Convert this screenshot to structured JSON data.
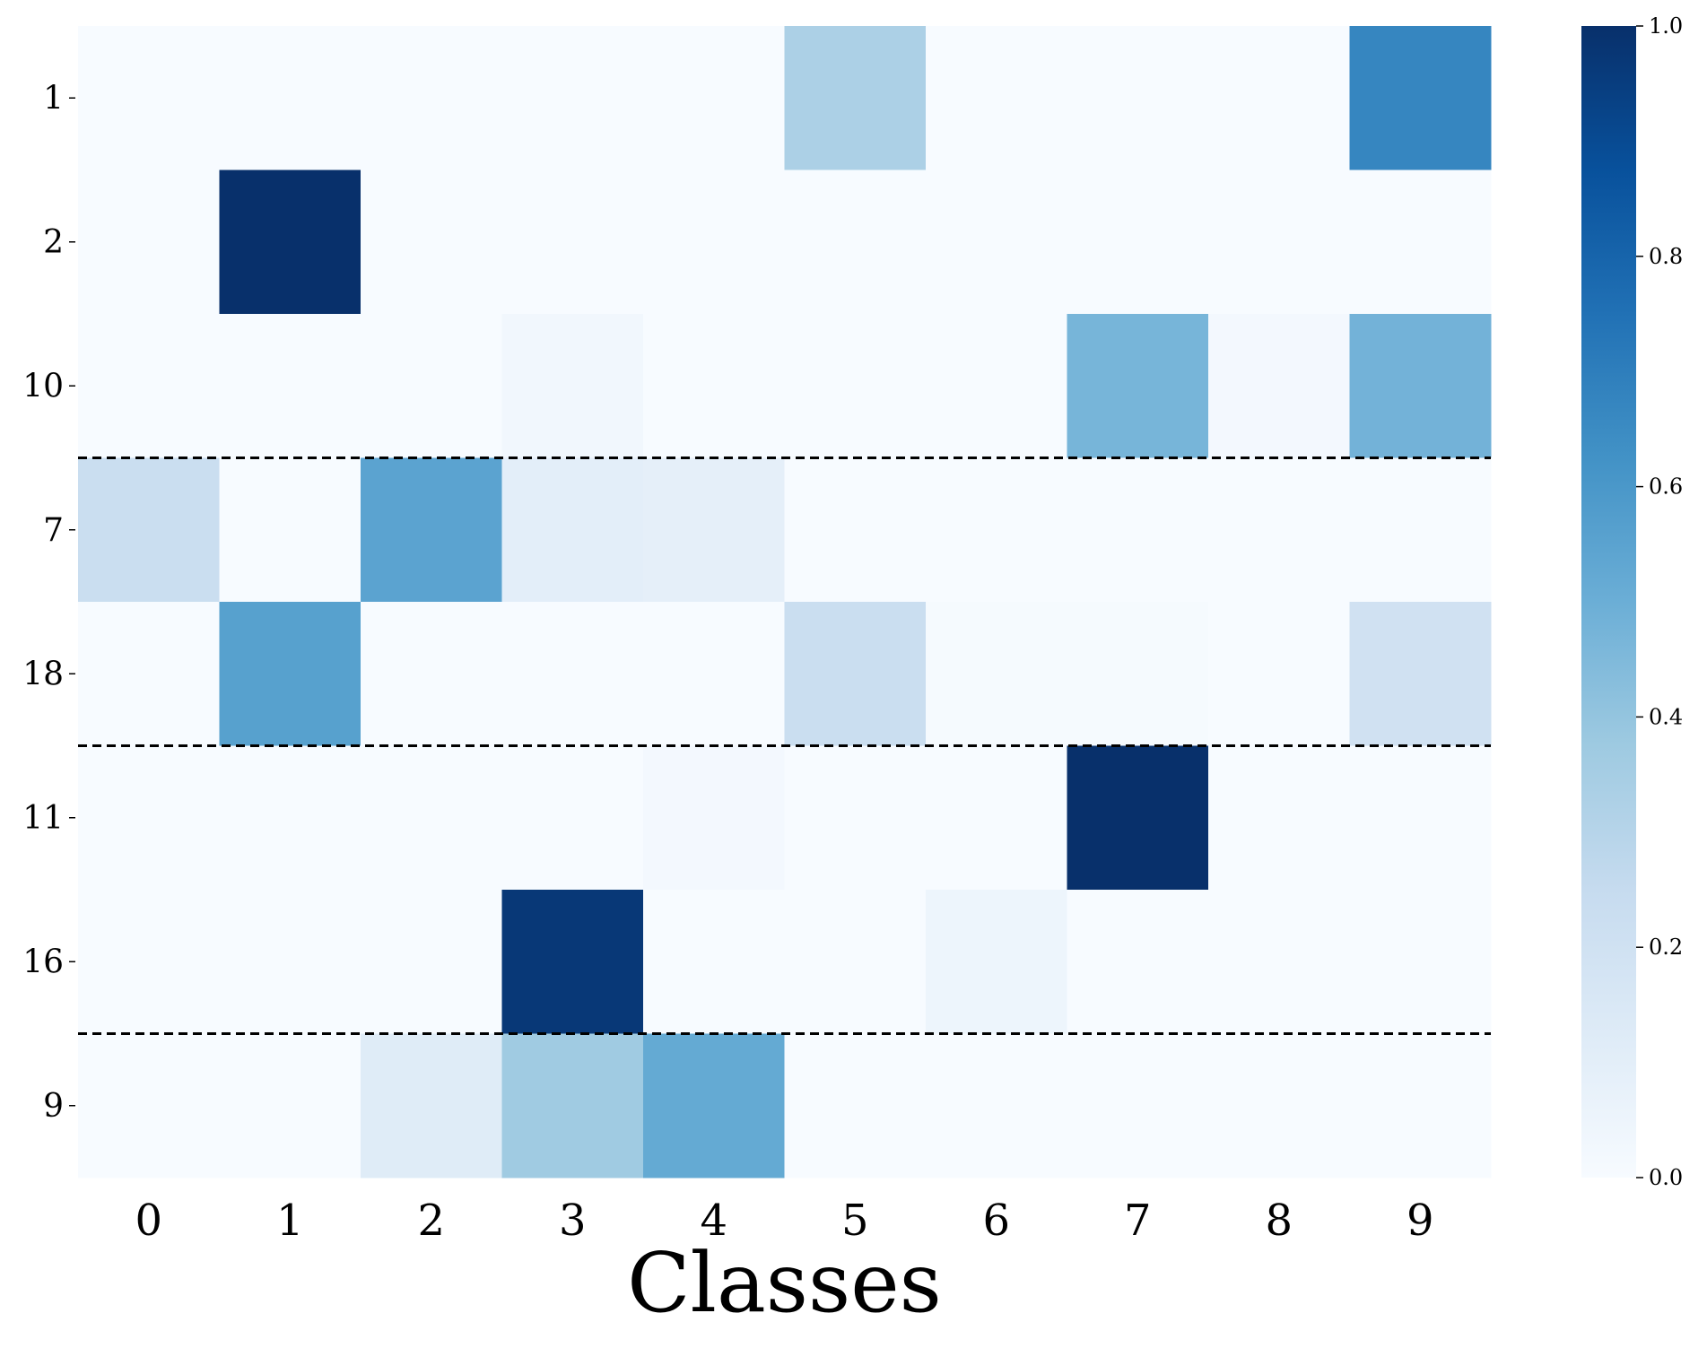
{
  "chart_data": {
    "type": "heatmap",
    "title": "",
    "xlabel": "Classes",
    "ylabel": "",
    "x_categories": [
      "0",
      "1",
      "2",
      "3",
      "4",
      "5",
      "6",
      "7",
      "8",
      "9"
    ],
    "y_categories": [
      "1",
      "2",
      "10",
      "7",
      "18",
      "11",
      "16",
      "9"
    ],
    "values": [
      [
        0.0,
        0.0,
        0.0,
        0.0,
        0.0,
        0.33,
        0.0,
        0.0,
        0.0,
        0.67
      ],
      [
        0.0,
        1.0,
        0.0,
        0.0,
        0.0,
        0.0,
        0.0,
        0.0,
        0.0,
        0.0
      ],
      [
        0.0,
        0.0,
        0.0,
        0.03,
        0.0,
        0.0,
        0.0,
        0.47,
        0.02,
        0.48
      ],
      [
        0.23,
        0.0,
        0.55,
        0.1,
        0.09,
        0.0,
        0.0,
        0.0,
        0.0,
        0.0
      ],
      [
        0.0,
        0.56,
        0.0,
        0.0,
        0.0,
        0.23,
        0.01,
        0.01,
        0.0,
        0.2
      ],
      [
        0.0,
        0.0,
        0.0,
        0.0,
        0.02,
        0.0,
        0.0,
        1.0,
        0.0,
        0.0
      ],
      [
        0.0,
        0.0,
        0.0,
        0.97,
        0.0,
        0.0,
        0.05,
        0.0,
        0.0,
        0.0
      ],
      [
        0.0,
        0.0,
        0.12,
        0.37,
        0.52,
        0.0,
        0.0,
        0.0,
        0.0,
        0.0
      ]
    ],
    "group_separators_after_row": [
      2,
      4,
      6
    ],
    "colorbar": {
      "vmin": 0.0,
      "vmax": 1.0,
      "tick_labels": [
        "0.0",
        "0.2",
        "0.4",
        "0.6",
        "0.8",
        "1.0"
      ],
      "colormap": "Blues",
      "colors": [
        "#f7fbff",
        "#deebf7",
        "#c6dbef",
        "#9ecae1",
        "#6baed6",
        "#4292c6",
        "#2171b5",
        "#08519c",
        "#08306b"
      ]
    },
    "grid": false,
    "legend": "none"
  }
}
